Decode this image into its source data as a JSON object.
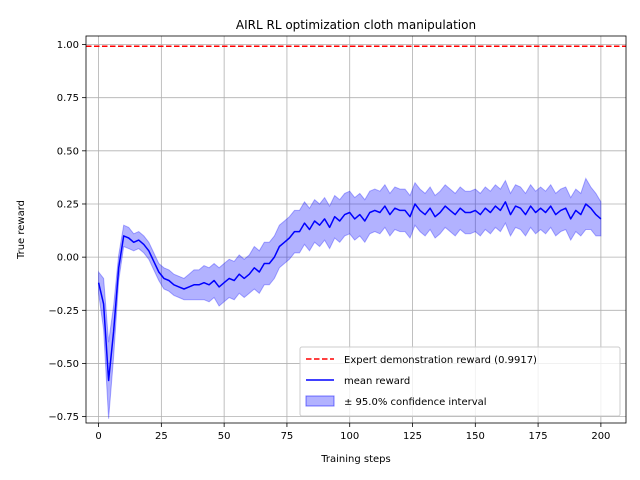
{
  "chart_data": {
    "type": "line",
    "title": "AIRL RL optimization cloth manipulation",
    "xlabel": "Training steps",
    "ylabel": "True reward",
    "xlim": [
      -5,
      210
    ],
    "ylim": [
      -0.78,
      1.04
    ],
    "xticks": [
      0,
      25,
      50,
      75,
      100,
      125,
      150,
      175,
      200
    ],
    "xtick_labels": [
      "0",
      "25",
      "50",
      "75",
      "100",
      "125",
      "150",
      "175",
      "200"
    ],
    "yticks": [
      -0.75,
      -0.5,
      -0.25,
      0.0,
      0.25,
      0.5,
      0.75,
      1.0
    ],
    "ytick_labels": [
      "−0.75",
      "−0.50",
      "−0.25",
      "0.00",
      "0.25",
      "0.50",
      "0.75",
      "1.00"
    ],
    "grid": true,
    "legend_position": "bottom-right",
    "expert_line": {
      "label": "Expert demonstration reward (0.9917)",
      "value": 0.9917,
      "color": "#ff0000",
      "style": "dashed"
    },
    "series": [
      {
        "name": "mean reward",
        "color": "#0000ff",
        "x": [
          0,
          2,
          4,
          6,
          8,
          10,
          12,
          14,
          16,
          18,
          20,
          22,
          24,
          26,
          28,
          30,
          32,
          34,
          36,
          38,
          40,
          42,
          44,
          46,
          48,
          50,
          52,
          54,
          56,
          58,
          60,
          62,
          64,
          66,
          68,
          70,
          72,
          74,
          76,
          78,
          80,
          82,
          84,
          86,
          88,
          90,
          92,
          94,
          96,
          98,
          100,
          102,
          104,
          106,
          108,
          110,
          112,
          114,
          116,
          118,
          120,
          122,
          124,
          126,
          128,
          130,
          132,
          134,
          136,
          138,
          140,
          142,
          144,
          146,
          148,
          150,
          152,
          154,
          156,
          158,
          160,
          162,
          164,
          166,
          168,
          170,
          172,
          174,
          176,
          178,
          180,
          182,
          184,
          186,
          188,
          190,
          192,
          194,
          196,
          198,
          200
        ],
        "y": [
          -0.12,
          -0.22,
          -0.58,
          -0.35,
          -0.05,
          0.1,
          0.09,
          0.07,
          0.08,
          0.06,
          0.03,
          -0.02,
          -0.07,
          -0.1,
          -0.11,
          -0.13,
          -0.14,
          -0.15,
          -0.14,
          -0.13,
          -0.13,
          -0.12,
          -0.13,
          -0.11,
          -0.14,
          -0.12,
          -0.1,
          -0.11,
          -0.08,
          -0.1,
          -0.08,
          -0.05,
          -0.07,
          -0.03,
          -0.03,
          0.0,
          0.05,
          0.07,
          0.09,
          0.12,
          0.12,
          0.16,
          0.13,
          0.17,
          0.15,
          0.18,
          0.14,
          0.19,
          0.17,
          0.2,
          0.21,
          0.18,
          0.2,
          0.17,
          0.21,
          0.22,
          0.21,
          0.24,
          0.2,
          0.23,
          0.22,
          0.22,
          0.19,
          0.25,
          0.22,
          0.2,
          0.23,
          0.19,
          0.21,
          0.24,
          0.22,
          0.2,
          0.23,
          0.21,
          0.21,
          0.22,
          0.2,
          0.23,
          0.21,
          0.24,
          0.22,
          0.26,
          0.2,
          0.24,
          0.23,
          0.2,
          0.24,
          0.21,
          0.23,
          0.21,
          0.24,
          0.2,
          0.22,
          0.23,
          0.18,
          0.22,
          0.2,
          0.25,
          0.23,
          0.2,
          0.18
        ]
      }
    ],
    "band": {
      "label": "± 95.0% confidence interval",
      "fill": "#0000ff",
      "opacity": 0.3,
      "half_width": [
        0.05,
        0.12,
        0.18,
        0.12,
        0.06,
        0.05,
        0.05,
        0.04,
        0.04,
        0.04,
        0.04,
        0.04,
        0.04,
        0.05,
        0.05,
        0.05,
        0.05,
        0.05,
        0.06,
        0.07,
        0.07,
        0.08,
        0.08,
        0.08,
        0.09,
        0.09,
        0.09,
        0.09,
        0.09,
        0.09,
        0.09,
        0.1,
        0.1,
        0.1,
        0.1,
        0.1,
        0.1,
        0.1,
        0.1,
        0.1,
        0.1,
        0.1,
        0.1,
        0.1,
        0.1,
        0.1,
        0.1,
        0.1,
        0.1,
        0.1,
        0.1,
        0.1,
        0.1,
        0.1,
        0.1,
        0.1,
        0.1,
        0.1,
        0.1,
        0.1,
        0.1,
        0.1,
        0.1,
        0.1,
        0.1,
        0.1,
        0.1,
        0.1,
        0.1,
        0.1,
        0.1,
        0.1,
        0.1,
        0.1,
        0.1,
        0.1,
        0.1,
        0.1,
        0.1,
        0.1,
        0.1,
        0.1,
        0.1,
        0.1,
        0.1,
        0.1,
        0.1,
        0.1,
        0.1,
        0.1,
        0.1,
        0.1,
        0.1,
        0.1,
        0.1,
        0.1,
        0.1,
        0.12,
        0.1,
        0.1,
        0.08
      ]
    }
  }
}
